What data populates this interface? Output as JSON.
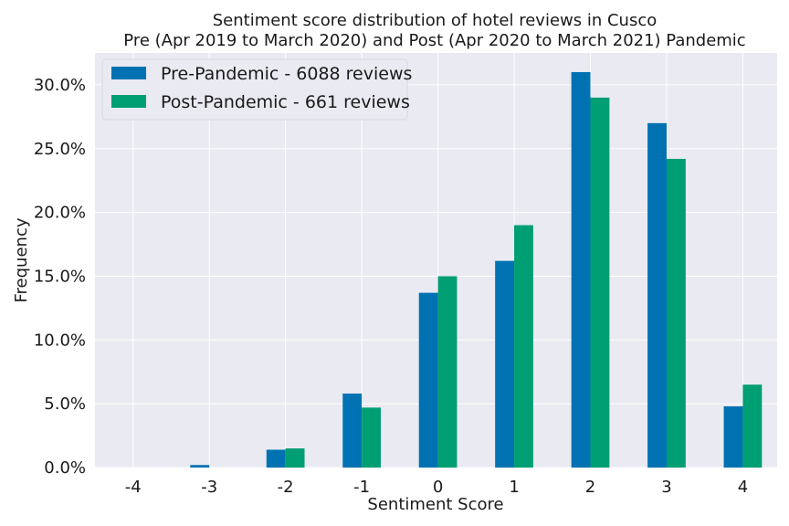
{
  "chart_data": {
    "type": "bar",
    "title": "Sentiment score distribution of hotel reviews in Cusco",
    "subtitle": "Pre (Apr 2019 to March 2020) and Post (Apr 2020 to March 2021) Pandemic",
    "xlabel": "Sentiment Score",
    "ylabel": "Frequency",
    "categories": [
      "-4",
      "-3",
      "-2",
      "-1",
      "0",
      "1",
      "2",
      "3",
      "4"
    ],
    "x_values": [
      -4,
      -3,
      -2,
      -1,
      0,
      1,
      2,
      3,
      4
    ],
    "y_ticks": [
      "0.0%",
      "5.0%",
      "10.0%",
      "15.0%",
      "20.0%",
      "25.0%",
      "30.0%"
    ],
    "ylim": [
      0,
      32.5
    ],
    "xlim": [
      -4.5,
      4.45
    ],
    "grid": true,
    "legend_position": "top-left",
    "series": [
      {
        "name": "Pre-Pandemic - 6088 reviews",
        "color": "#0072b2",
        "values": [
          0.0,
          0.2,
          1.4,
          5.8,
          13.7,
          16.2,
          31.0,
          27.0,
          4.8
        ]
      },
      {
        "name": "Post-Pandemic - 661 reviews",
        "color": "#009e73",
        "values": [
          0.0,
          0.0,
          1.5,
          4.7,
          15.0,
          19.0,
          29.0,
          24.2,
          6.5
        ]
      }
    ],
    "background_color": "#eaeaf2",
    "grid_color": "#ffffff"
  }
}
